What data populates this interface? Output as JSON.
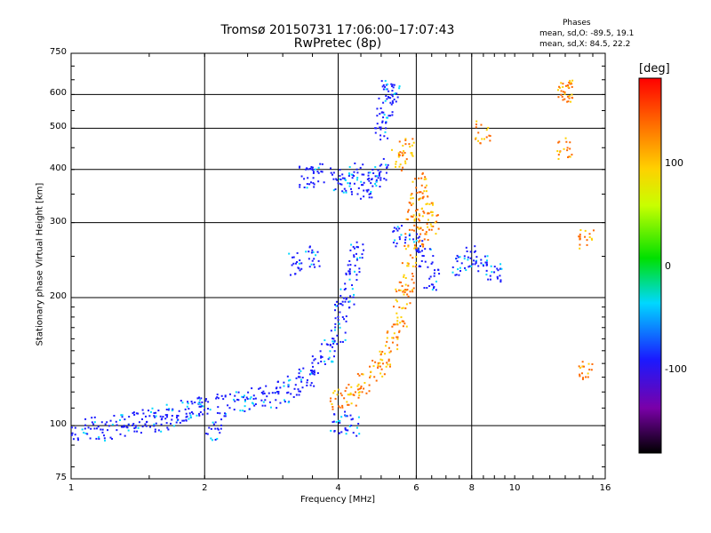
{
  "chart_data": {
    "type": "scatter",
    "title": "Tromsø 20150731 17:06:00–17:07:43",
    "subtitle": "RwPretec (8p)",
    "xlabel": "Frequency [MHz]",
    "ylabel": "Stationary phase Virtual Height [km]",
    "x_scale": "log",
    "y_scale": "log",
    "xlim": [
      1,
      16
    ],
    "ylim": [
      75,
      750
    ],
    "x_ticks": [
      1,
      2,
      4,
      6,
      8,
      10,
      16
    ],
    "y_ticks": [
      75,
      100,
      200,
      300,
      400,
      500,
      600,
      750
    ],
    "grid": true,
    "legend": {
      "heading": "Phases",
      "line_o": "mean, sd,O: -89.5, 19.1",
      "line_x": "mean, sd,X:  84.5, 22.2"
    },
    "colorbar": {
      "title": "[deg]",
      "range": [
        -180,
        180
      ],
      "ticks": [
        100,
        0,
        -100
      ],
      "colormap": "rainbow (black-purple-blue-cyan-green-yellow-orange-red)"
    },
    "series": [
      {
        "name": "O",
        "approx_phase_deg": -100,
        "points": [
          [
            1.0,
            97
          ],
          [
            1.1,
            99
          ],
          [
            1.2,
            98
          ],
          [
            1.3,
            100
          ],
          [
            1.4,
            102
          ],
          [
            1.5,
            104
          ],
          [
            1.6,
            103
          ],
          [
            1.7,
            106
          ],
          [
            1.8,
            108
          ],
          [
            1.9,
            110
          ],
          [
            2.0,
            111
          ],
          [
            2.2,
            112
          ],
          [
            2.4,
            114
          ],
          [
            2.6,
            116
          ],
          [
            2.8,
            117
          ],
          [
            3.0,
            120
          ],
          [
            3.2,
            124
          ],
          [
            3.4,
            130
          ],
          [
            3.6,
            140
          ],
          [
            3.8,
            150
          ],
          [
            4.0,
            165
          ],
          [
            4.1,
            185
          ],
          [
            4.2,
            205
          ],
          [
            4.3,
            230
          ],
          [
            4.4,
            260
          ],
          [
            4.0,
            380
          ],
          [
            4.2,
            370
          ],
          [
            4.4,
            390
          ],
          [
            4.6,
            360
          ],
          [
            4.8,
            380
          ],
          [
            5.0,
            400
          ],
          [
            5.0,
            500
          ],
          [
            5.1,
            560
          ],
          [
            5.2,
            610
          ],
          [
            5.3,
            600
          ],
          [
            3.4,
            385
          ],
          [
            3.6,
            390
          ],
          [
            3.2,
            240
          ],
          [
            3.5,
            250
          ],
          [
            4.0,
            102
          ],
          [
            4.3,
            100
          ],
          [
            5.5,
            280
          ],
          [
            6.0,
            270
          ],
          [
            6.3,
            250
          ],
          [
            6.5,
            220
          ],
          [
            7.5,
            240
          ],
          [
            8.0,
            250
          ],
          [
            8.5,
            240
          ],
          [
            9.0,
            230
          ],
          [
            2.1,
            98
          ]
        ]
      },
      {
        "name": "X",
        "approx_phase_deg": 100,
        "points": [
          [
            4.0,
            115
          ],
          [
            4.3,
            118
          ],
          [
            4.6,
            125
          ],
          [
            4.9,
            135
          ],
          [
            5.1,
            145
          ],
          [
            5.3,
            160
          ],
          [
            5.5,
            180
          ],
          [
            5.6,
            200
          ],
          [
            5.7,
            215
          ],
          [
            5.8,
            250
          ],
          [
            5.9,
            300
          ],
          [
            6.0,
            340
          ],
          [
            6.1,
            370
          ],
          [
            6.3,
            330
          ],
          [
            6.5,
            300
          ],
          [
            5.5,
            420
          ],
          [
            5.7,
            450
          ],
          [
            6.2,
            280
          ],
          [
            8.5,
            490
          ],
          [
            13.0,
            610
          ],
          [
            13.0,
            450
          ],
          [
            14.5,
            275
          ],
          [
            14.5,
            135
          ],
          [
            13.0,
            620
          ]
        ]
      }
    ]
  }
}
